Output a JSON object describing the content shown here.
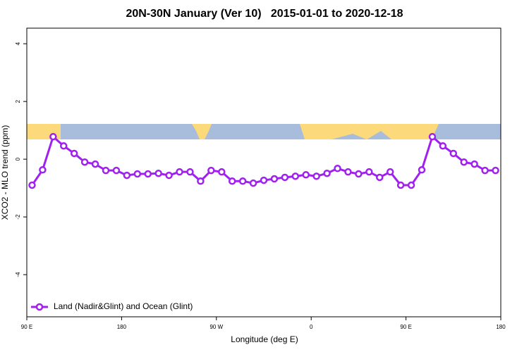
{
  "chart_data": {
    "type": "line",
    "title": "20N-30N January (Ver 10)   2015-01-01 to 2020-12-18",
    "xlabel": "Longitude (deg E)",
    "ylabel": "XCO2 - MLO trend (ppm)",
    "x": [
      95,
      105,
      115,
      125,
      135,
      145,
      155,
      165,
      175,
      185,
      195,
      205,
      215,
      225,
      235,
      245,
      255,
      265,
      275,
      285,
      295,
      305,
      315,
      325,
      335,
      345,
      355,
      365,
      375,
      385,
      395,
      405,
      415,
      425,
      435,
      445,
      455,
      465,
      475,
      485,
      495,
      505,
      515,
      525,
      535
    ],
    "series": [
      {
        "name": "Land (Nadir&Glint) and Ocean (Glint)",
        "color": "#a020f0",
        "values": [
          -0.9,
          -0.37,
          0.78,
          0.46,
          0.2,
          -0.1,
          -0.17,
          -0.39,
          -0.39,
          -0.56,
          -0.51,
          -0.51,
          -0.49,
          -0.56,
          -0.44,
          -0.44,
          -0.76,
          -0.39,
          -0.44,
          -0.76,
          -0.76,
          -0.83,
          -0.73,
          -0.68,
          -0.63,
          -0.59,
          -0.54,
          -0.59,
          -0.49,
          -0.32,
          -0.44,
          -0.51,
          -0.44,
          -0.63,
          -0.44,
          -0.9,
          -0.9,
          -0.37,
          0.78,
          0.46,
          0.2,
          -0.1,
          -0.17,
          -0.39,
          -0.39
        ]
      }
    ],
    "xlim": [
      90,
      540
    ],
    "xticks": [
      {
        "value": 90,
        "label": "90 E"
      },
      {
        "value": 180,
        "label": "180"
      },
      {
        "value": 270,
        "label": "90 W"
      },
      {
        "value": 360,
        "label": "0"
      },
      {
        "value": 450,
        "label": "90 E"
      },
      {
        "value": 540,
        "label": "180"
      }
    ],
    "ylim": [
      -5.46,
      4.54
    ],
    "yticks": [
      -4,
      -2,
      0,
      2,
      4
    ],
    "legend": "bottom-left"
  }
}
